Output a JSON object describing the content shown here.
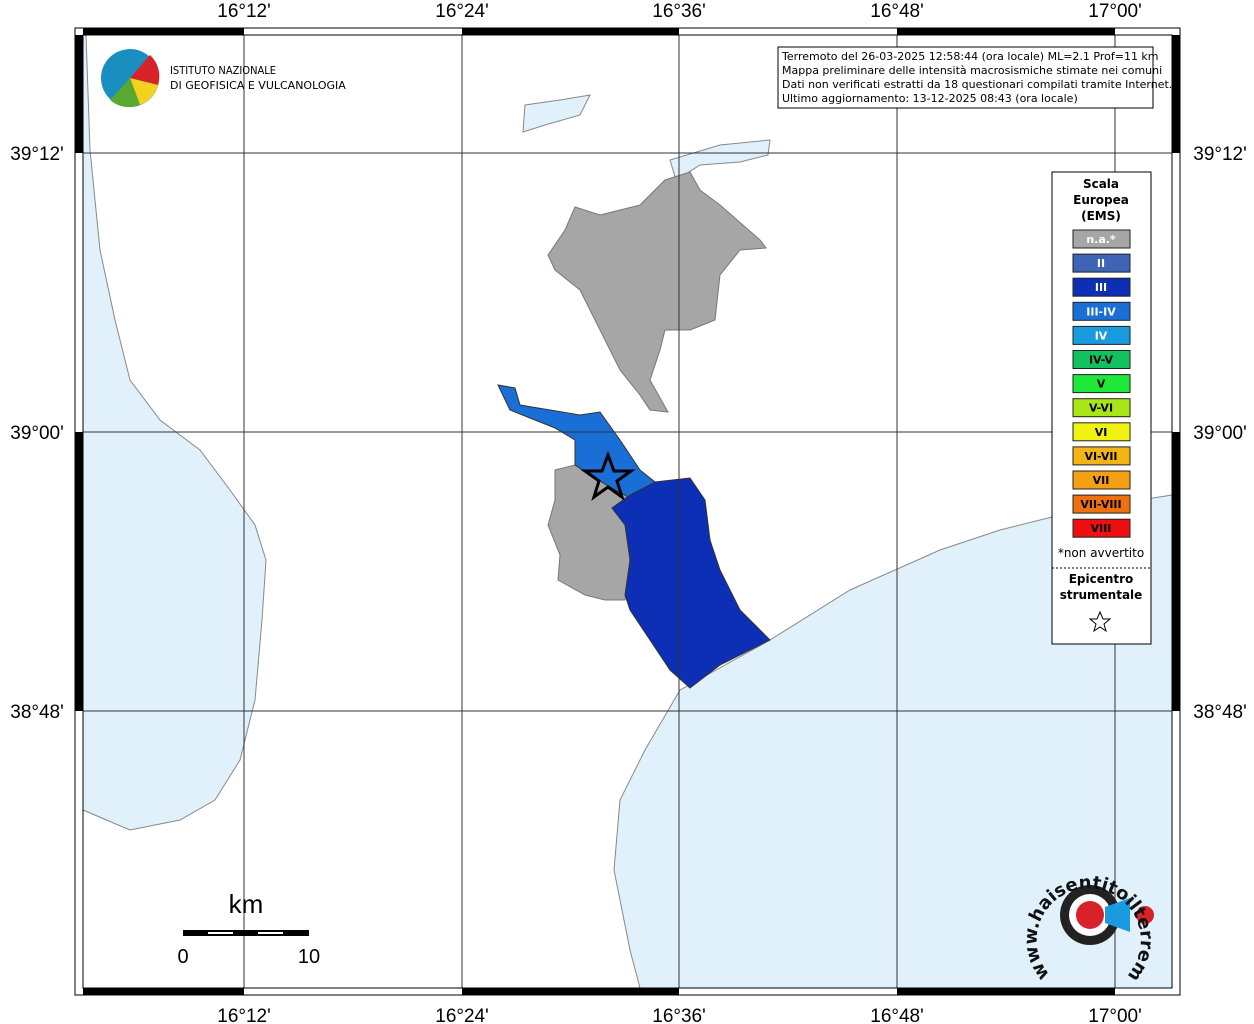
{
  "map": {
    "lon_labels": [
      "16°12'",
      "16°24'",
      "16°36'",
      "16°48'",
      "17°00'"
    ],
    "lat_labels": [
      "39°12'",
      "39°00'",
      "38°48'"
    ],
    "logo": {
      "line1": "ISTITUTO NAZIONALE",
      "line2": "DI GEOFISICA E VULCANOLOGIA"
    },
    "info": [
      "Terremoto del 26-03-2025 12:58:44 (ora locale) ML=2.1 Prof=11 km",
      "Mappa preliminare delle intensità macrosismiche stimate nei comuni",
      "Dati non verificati estratti da 18 questionari compilati tramite Internet.",
      "Ultimo aggiornamento: 13-12-2025 08:43 (ora locale)"
    ],
    "legend": {
      "title": [
        "Scala",
        "Europea",
        "(EMS)"
      ],
      "items": [
        {
          "label": "n.a.*",
          "color": "#a6a6a6"
        },
        {
          "label": "II",
          "color": "#3f63b5"
        },
        {
          "label": "III",
          "color": "#0d2fb5"
        },
        {
          "label": "III-IV",
          "color": "#1a6fd6"
        },
        {
          "label": "IV",
          "color": "#1a9be0"
        },
        {
          "label": "IV-V",
          "color": "#12c060"
        },
        {
          "label": "V",
          "color": "#1fe83a"
        },
        {
          "label": "V-VI",
          "color": "#a8e617"
        },
        {
          "label": "VI",
          "color": "#f2f211"
        },
        {
          "label": "VI-VII",
          "color": "#f2b515"
        },
        {
          "label": "VII",
          "color": "#f5a012"
        },
        {
          "label": "VII-VIII",
          "color": "#f07010"
        },
        {
          "label": "VIII",
          "color": "#ee1010"
        }
      ],
      "note": "*non avvertito",
      "epicenter": [
        "Epicentro",
        "strumentale"
      ]
    },
    "scale": {
      "unit": "km",
      "start": "0",
      "end": "10"
    },
    "site": "www.haisentitoilterremoto.it"
  }
}
